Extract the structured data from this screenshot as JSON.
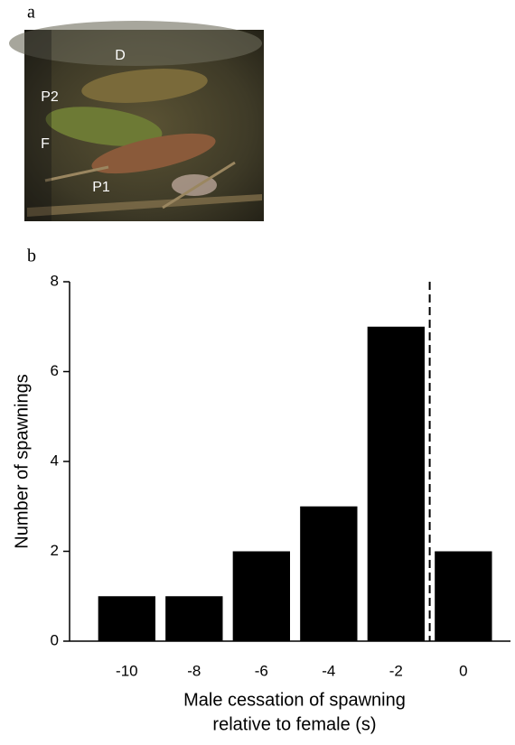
{
  "panel_labels": [
    "a",
    "b"
  ],
  "photo": {
    "labels": [
      "D",
      "P2",
      "F",
      "P1"
    ]
  },
  "chart_data": {
    "type": "bar",
    "x": [
      -10,
      -8,
      -6,
      -4,
      -2,
      0
    ],
    "values": [
      1,
      1,
      2,
      3,
      7,
      2
    ],
    "color": "#000000",
    "xlim": [
      -11.7,
      1.4
    ],
    "xticks": [
      -10,
      -8,
      -6,
      -4,
      -2,
      0
    ],
    "ylim": [
      0,
      8
    ],
    "yticks": [
      0,
      2,
      4,
      6,
      8
    ],
    "ylabel": "Number of spawnings",
    "xlabel": [
      "Male cessation of spawning",
      "relative to female (s)"
    ],
    "vline": -1,
    "grid": false
  }
}
